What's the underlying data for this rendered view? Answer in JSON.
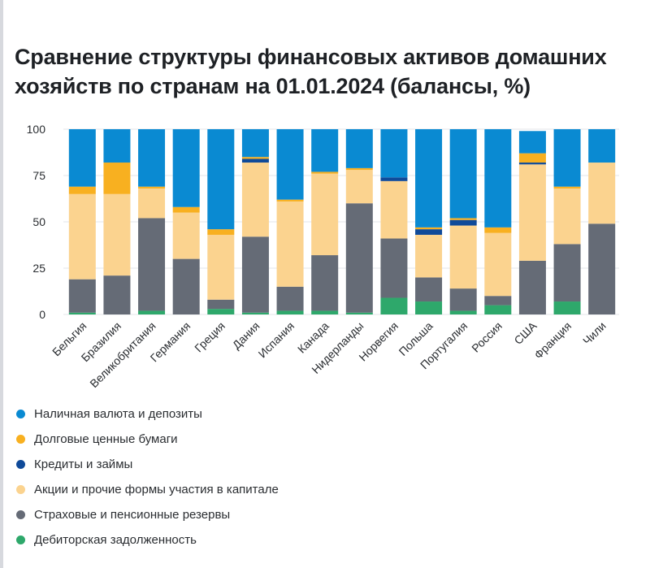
{
  "title": "Сравнение структуры финансовых активов домашних хозяйств по странам на 01.01.2024 (балансы, %)",
  "chart_data": {
    "type": "bar",
    "stacked": true,
    "ylim": [
      0,
      100
    ],
    "yticks": [
      0,
      25,
      50,
      75,
      100
    ],
    "grid": true,
    "legend_position": "bottom",
    "categories": [
      "Бельгия",
      "Бразилия",
      "Великобритания",
      "Германия",
      "Греция",
      "Дания",
      "Испания",
      "Канада",
      "Нидерланды",
      "Норвегия",
      "Польша",
      "Португалия",
      "Россия",
      "США",
      "Франция",
      "Чили"
    ],
    "series": [
      {
        "name": "Дебиторская задолженность",
        "color": "#2ea86b",
        "values": [
          1,
          0,
          2,
          0,
          3,
          1,
          2,
          2,
          1,
          9,
          7,
          2,
          5,
          0,
          7,
          0
        ]
      },
      {
        "name": "Страховые и пенсионные резервы",
        "color": "#656b76",
        "values": [
          18,
          21,
          50,
          30,
          5,
          41,
          13,
          30,
          59,
          32,
          13,
          12,
          5,
          29,
          31,
          49
        ]
      },
      {
        "name": "Акции и прочие формы участия в капитале",
        "color": "#fbd38f",
        "values": [
          46,
          44,
          16,
          25,
          35,
          40,
          46,
          44,
          18,
          31,
          23,
          34,
          34,
          52,
          30,
          33
        ]
      },
      {
        "name": "Кредиты и займы",
        "color": "#0f4a99",
        "values": [
          0,
          0,
          0,
          0,
          0,
          2,
          0,
          0,
          0,
          2,
          3,
          3,
          0,
          1,
          0,
          0
        ]
      },
      {
        "name": "Долговые ценные бумаги",
        "color": "#f8b020",
        "values": [
          4,
          17,
          1,
          3,
          3,
          1,
          1,
          1,
          1,
          0,
          1,
          1,
          3,
          5,
          1,
          0
        ]
      },
      {
        "name": "Наличная валюта и депозиты",
        "color": "#0a8ad2",
        "values": [
          31,
          18,
          31,
          42,
          54,
          15,
          38,
          23,
          21,
          26,
          53,
          48,
          53,
          12,
          31,
          18
        ]
      }
    ]
  },
  "legend": [
    {
      "label": "Наличная валюта и депозиты",
      "color": "#0a8ad2"
    },
    {
      "label": "Долговые ценные бумаги",
      "color": "#f8b020"
    },
    {
      "label": "Кредиты и займы",
      "color": "#0f4a99"
    },
    {
      "label": "Акции и прочие формы участия в капитале",
      "color": "#fbd38f"
    },
    {
      "label": "Страховые и пенсионные резервы",
      "color": "#656b76"
    },
    {
      "label": "Дебиторская задолженность",
      "color": "#2ea86b"
    }
  ]
}
